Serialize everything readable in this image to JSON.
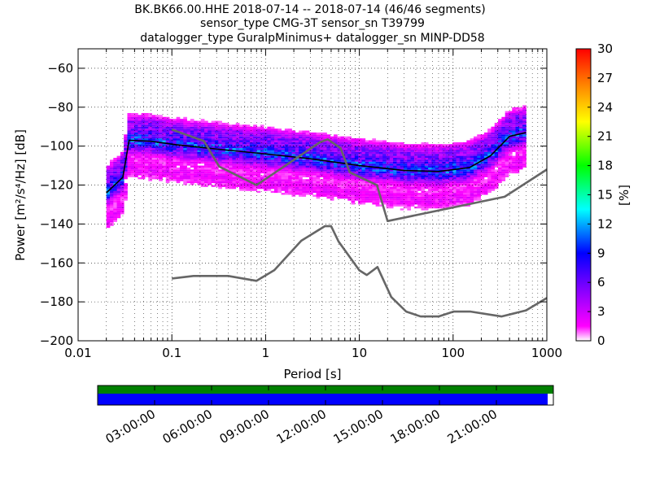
{
  "header": {
    "line1": "BK.BK66.00.HHE   2018-07-14 -- 2018-07-14  (46/46 segments)",
    "line2": "sensor_type CMG-3T sensor_sn T39799",
    "line3": "datalogger_type GuralpMinimus+ datalogger_sn MINP-DD58"
  },
  "chart_data": {
    "type": "heatmap",
    "title": "BK.BK66.00.HHE   2018-07-14 -- 2018-07-14  (46/46 segments)",
    "xlabel": "Period [s]",
    "ylabel": "Power [m²/s⁴/Hz] [dB]",
    "x_scale": "log",
    "xlim": [
      0.01,
      1000
    ],
    "ylim": [
      -200,
      -50
    ],
    "x_ticks": [
      0.01,
      0.1,
      1,
      10,
      100,
      1000
    ],
    "x_tick_labels": [
      "0.01",
      "0.1",
      "1",
      "10",
      "100",
      "1000"
    ],
    "y_ticks": [
      -200,
      -180,
      -160,
      -140,
      -120,
      -100,
      -80,
      -60
    ],
    "y_tick_labels": [
      "−200",
      "−180",
      "−160",
      "−140",
      "−120",
      "−100",
      "−80",
      "−60"
    ],
    "grid": "dotted",
    "colorbar": {
      "label": "[%]",
      "range": [
        0,
        30
      ],
      "ticks": [
        0,
        3,
        6,
        9,
        12,
        15,
        18,
        21,
        24,
        27,
        30
      ],
      "stops": [
        "#ffffff",
        "#ff00ff",
        "#8000ff",
        "#0000ff",
        "#00ffff",
        "#00ff00",
        "#ffff00",
        "#ff8000",
        "#ff0000"
      ]
    },
    "noise_models": {
      "color": "#666666",
      "high": [
        {
          "period": 0.1,
          "db": -91.5
        },
        {
          "period": 0.22,
          "db": -97.4
        },
        {
          "period": 0.32,
          "db": -110.5
        },
        {
          "period": 0.8,
          "db": -120
        },
        {
          "period": 3.8,
          "db": -98
        },
        {
          "period": 4.6,
          "db": -96.5
        },
        {
          "period": 6.3,
          "db": -101
        },
        {
          "period": 7.9,
          "db": -113.5
        },
        {
          "period": 15.4,
          "db": -120
        },
        {
          "period": 20,
          "db": -138.5
        },
        {
          "period": 354.8,
          "db": -126
        },
        {
          "period": 1000,
          "db": -112
        }
      ],
      "low": [
        {
          "period": 0.1,
          "db": -168
        },
        {
          "period": 0.17,
          "db": -166.7
        },
        {
          "period": 0.4,
          "db": -166.7
        },
        {
          "period": 0.8,
          "db": -169.2
        },
        {
          "period": 1.24,
          "db": -163.7
        },
        {
          "period": 2.4,
          "db": -148.6
        },
        {
          "period": 4.3,
          "db": -141.1
        },
        {
          "period": 5.0,
          "db": -141.1
        },
        {
          "period": 6.0,
          "db": -149
        },
        {
          "period": 10,
          "db": -163.8
        },
        {
          "period": 12,
          "db": -166.2
        },
        {
          "period": 15.6,
          "db": -162.1
        },
        {
          "period": 21.9,
          "db": -177.5
        },
        {
          "period": 31.6,
          "db": -185
        },
        {
          "period": 45,
          "db": -187.5
        },
        {
          "period": 70,
          "db": -187.5
        },
        {
          "period": 101,
          "db": -185
        },
        {
          "period": 154,
          "db": -185
        },
        {
          "period": 328,
          "db": -187.5
        },
        {
          "period": 600,
          "db": -184.4
        },
        {
          "period": 1000,
          "db": -178
        }
      ]
    },
    "mode_curve": {
      "color": "#000000",
      "points": [
        {
          "period": 0.02,
          "db": -124
        },
        {
          "period": 0.03,
          "db": -116
        },
        {
          "period": 0.035,
          "db": -97
        },
        {
          "period": 0.06,
          "db": -97.5
        },
        {
          "period": 0.1,
          "db": -99
        },
        {
          "period": 0.3,
          "db": -101.5
        },
        {
          "period": 1,
          "db": -104
        },
        {
          "period": 3,
          "db": -106.5
        },
        {
          "period": 10,
          "db": -110
        },
        {
          "period": 30,
          "db": -112.5
        },
        {
          "period": 70,
          "db": -113
        },
        {
          "period": 150,
          "db": -111
        },
        {
          "period": 250,
          "db": -105
        },
        {
          "period": 400,
          "db": -95
        },
        {
          "period": 600,
          "db": -93
        }
      ]
    },
    "density_bands": [
      {
        "name": "main",
        "offset": 0,
        "width": 6,
        "intensity": 9
      },
      {
        "name": "upper",
        "offset": 9,
        "width": 4,
        "intensity": 4
      },
      {
        "name": "lower",
        "offset": -15,
        "width": 5,
        "intensity": 2
      }
    ],
    "timeline": {
      "tick_labels": [
        "03:00:00",
        "06:00:00",
        "09:00:00",
        "12:00:00",
        "15:00:00",
        "18:00:00",
        "21:00:00"
      ],
      "tick_hours": [
        3,
        6,
        9,
        12,
        15,
        18,
        21
      ],
      "span_hours": 24,
      "top_bar_color": "#008000",
      "data_bar_color": "#0000ff",
      "data_coverage_end_hour": 23.7
    }
  }
}
